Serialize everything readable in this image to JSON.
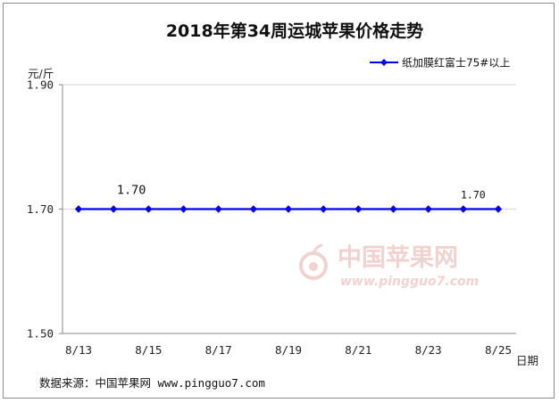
{
  "chart_data": {
    "type": "line",
    "title": "2018年第34周运城苹果价格走势",
    "ylabel": "元/斤",
    "xlabel": "日期",
    "ylim": [
      1.5,
      1.9
    ],
    "y_ticks": [
      "1.90",
      "1.70",
      "1.50"
    ],
    "x_tick_labels": [
      "8/13",
      "8/15",
      "8/17",
      "8/19",
      "8/21",
      "8/23",
      "8/25"
    ],
    "x": [
      "8/13",
      "8/14",
      "8/15",
      "8/16",
      "8/17",
      "8/18",
      "8/19",
      "8/20",
      "8/21",
      "8/22",
      "8/23",
      "8/24",
      "8/25"
    ],
    "series": [
      {
        "name": "纸加膜红富士75#以上",
        "values": [
          1.7,
          1.7,
          1.7,
          1.7,
          1.7,
          1.7,
          1.7,
          1.7,
          1.7,
          1.7,
          1.7,
          1.7,
          1.7
        ],
        "color": "#0000ee"
      }
    ],
    "data_labels": [
      {
        "x": "8/14",
        "text": "1.70"
      },
      {
        "x": "8/24",
        "text": "1.70"
      }
    ],
    "legend_position": "top-right",
    "grid": "horizontal"
  },
  "watermark": {
    "name": "中国苹果网",
    "url": "www.pingguo7.com"
  },
  "source_text": "数据来源：中国苹果网 www.pingguo7.com"
}
